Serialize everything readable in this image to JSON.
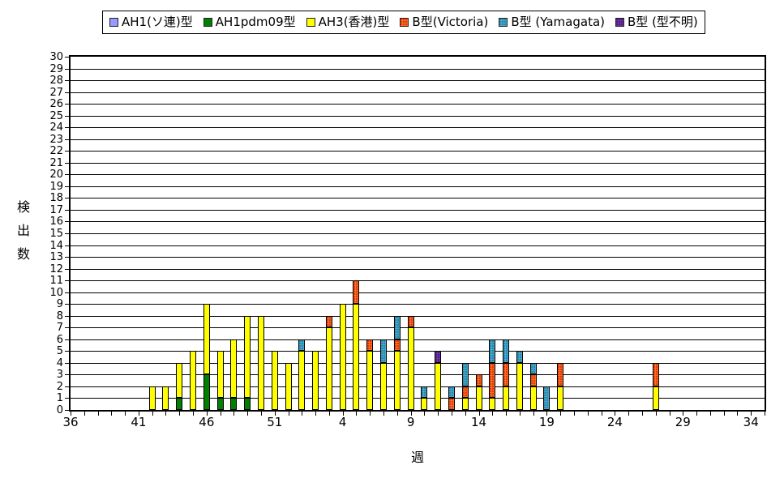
{
  "chart_data": {
    "type": "bar",
    "stacked": true,
    "title": "",
    "xlabel": "週",
    "ylabel": "検出数",
    "ylim": [
      0,
      30
    ],
    "ystep": 1,
    "grid": "horizontal-every-1",
    "legend_position": "top",
    "x_axis": {
      "start_week": 36,
      "end_week": 35,
      "total_weeks": 52,
      "tick_labels": [
        {
          "text": "36",
          "index": 0
        },
        {
          "text": "41",
          "index": 5
        },
        {
          "text": "46",
          "index": 10
        },
        {
          "text": "51",
          "index": 15
        },
        {
          "text": "4",
          "index": 20
        },
        {
          "text": "9",
          "index": 25
        },
        {
          "text": "14",
          "index": 30
        },
        {
          "text": "19",
          "index": 35
        },
        {
          "text": "24",
          "index": 40
        },
        {
          "text": "29",
          "index": 45
        },
        {
          "text": "34",
          "index": 50
        }
      ]
    },
    "series": [
      {
        "id": "soren",
        "label": "AH1(ソ連)型",
        "color": "#9999ff"
      },
      {
        "id": "pdm09",
        "label": "AH1pdm09型",
        "color": "#008000"
      },
      {
        "id": "ah3",
        "label": "AH3(香港)型",
        "color": "#ffff00"
      },
      {
        "id": "victoria",
        "label": "B型(Victoria)",
        "color": "#ff6a1f"
      },
      {
        "id": "yamagata",
        "label": "B型 (Yamagata)",
        "color": "#45a8cb"
      },
      {
        "id": "unknown",
        "label": "B型 (型不明)",
        "color": "#6d35a4"
      }
    ],
    "bars": [
      {
        "week": 42,
        "segments": {
          "ah3": 2
        }
      },
      {
        "week": 43,
        "segments": {
          "ah3": 2
        }
      },
      {
        "week": 44,
        "segments": {
          "pdm09": 1,
          "ah3": 3
        }
      },
      {
        "week": 45,
        "segments": {
          "ah3": 5
        }
      },
      {
        "week": 46,
        "segments": {
          "pdm09": 3,
          "ah3": 6
        }
      },
      {
        "week": 47,
        "segments": {
          "pdm09": 1,
          "ah3": 4
        }
      },
      {
        "week": 48,
        "segments": {
          "pdm09": 1,
          "ah3": 5
        }
      },
      {
        "week": 49,
        "segments": {
          "pdm09": 1,
          "ah3": 7
        }
      },
      {
        "week": 50,
        "segments": {
          "ah3": 8
        }
      },
      {
        "week": 51,
        "segments": {
          "ah3": 5
        }
      },
      {
        "week": 52,
        "segments": {
          "ah3": 4
        }
      },
      {
        "week": 1,
        "segments": {
          "ah3": 5,
          "yamagata": 1
        }
      },
      {
        "week": 2,
        "segments": {
          "ah3": 5
        }
      },
      {
        "week": 3,
        "segments": {
          "ah3": 7,
          "victoria": 1
        }
      },
      {
        "week": 4,
        "segments": {
          "ah3": 9
        }
      },
      {
        "week": 5,
        "segments": {
          "ah3": 9,
          "victoria": 2
        }
      },
      {
        "week": 6,
        "segments": {
          "ah3": 5,
          "victoria": 1
        }
      },
      {
        "week": 7,
        "segments": {
          "ah3": 4,
          "yamagata": 2
        }
      },
      {
        "week": 8,
        "segments": {
          "ah3": 5,
          "victoria": 1,
          "yamagata": 2
        }
      },
      {
        "week": 9,
        "segments": {
          "ah3": 7,
          "victoria": 1
        }
      },
      {
        "week": 10,
        "segments": {
          "ah3": 1,
          "yamagata": 1
        }
      },
      {
        "week": 11,
        "segments": {
          "ah3": 4,
          "unknown": 1
        }
      },
      {
        "week": 12,
        "segments": {
          "victoria": 1,
          "yamagata": 1
        }
      },
      {
        "week": 13,
        "segments": {
          "ah3": 1,
          "victoria": 1,
          "yamagata": 2
        }
      },
      {
        "week": 14,
        "segments": {
          "ah3": 2,
          "victoria": 1
        }
      },
      {
        "week": 15,
        "segments": {
          "ah3": 1,
          "victoria": 3,
          "yamagata": 2
        }
      },
      {
        "week": 16,
        "segments": {
          "ah3": 2,
          "victoria": 2,
          "yamagata": 2
        }
      },
      {
        "week": 17,
        "segments": {
          "ah3": 4,
          "yamagata": 1
        }
      },
      {
        "week": 18,
        "segments": {
          "ah3": 2,
          "victoria": 1,
          "yamagata": 1
        }
      },
      {
        "week": 19,
        "segments": {
          "yamagata": 2
        }
      },
      {
        "week": 20,
        "segments": {
          "ah3": 2,
          "victoria": 2
        }
      },
      {
        "week": 27,
        "segments": {
          "ah3": 2,
          "victoria": 2
        }
      }
    ]
  }
}
